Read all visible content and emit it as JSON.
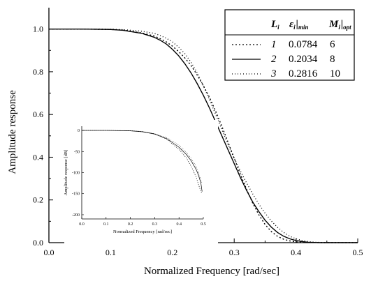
{
  "chart_data": [
    {
      "type": "line",
      "role": "main",
      "xlabel": "Normalized Frequency [rad/sec]",
      "ylabel": "Amplitude response",
      "xlim": [
        0.0,
        0.5
      ],
      "ylim": [
        0.0,
        1.1
      ],
      "xticks": [
        "0.0",
        "0.1",
        "0.2",
        "0.3",
        "0.4",
        "0.5"
      ],
      "yticks": [
        "0.0",
        "0.2",
        "0.4",
        "0.6",
        "0.8",
        "1.0"
      ],
      "xtick_values": [
        0.0,
        0.1,
        0.2,
        0.3,
        0.4,
        0.5
      ],
      "ytick_values": [
        0.0,
        0.2,
        0.4,
        0.6,
        0.8,
        1.0
      ],
      "grid": false,
      "legend_position": "top-right",
      "legend_headers": {
        "L": "L",
        "L_sub": "i",
        "eps": "ε",
        "eps_sub": "i",
        "eps_sub2": "min",
        "M": "M",
        "M_sub": "i",
        "M_sub2": "opt"
      },
      "series": [
        {
          "label": "1",
          "eps": "0.0784",
          "M": "6",
          "style": "dotted",
          "x": [
            0.0,
            0.05,
            0.1,
            0.12,
            0.15,
            0.17,
            0.18,
            0.19,
            0.2,
            0.21,
            0.22,
            0.23,
            0.24,
            0.25,
            0.26,
            0.27,
            0.28,
            0.29,
            0.3,
            0.31,
            0.32,
            0.33,
            0.34,
            0.35,
            0.36,
            0.37,
            0.38,
            0.39,
            0.4,
            0.42,
            0.44,
            0.46,
            0.48,
            0.5
          ],
          "y": [
            1.0,
            1.0,
            0.998,
            0.995,
            0.982,
            0.968,
            0.955,
            0.94,
            0.92,
            0.895,
            0.865,
            0.83,
            0.785,
            0.735,
            0.68,
            0.615,
            0.545,
            0.47,
            0.395,
            0.32,
            0.25,
            0.185,
            0.13,
            0.085,
            0.052,
            0.03,
            0.016,
            0.008,
            0.004,
            0.001,
            0.0,
            0.0,
            0.0,
            0.0
          ]
        },
        {
          "label": "2",
          "eps": "0.2034",
          "M": "8",
          "style": "solid",
          "x": [
            0.0,
            0.05,
            0.1,
            0.12,
            0.15,
            0.17,
            0.18,
            0.19,
            0.2,
            0.21,
            0.22,
            0.23,
            0.24,
            0.25,
            0.26,
            0.27,
            0.28,
            0.29,
            0.3,
            0.31,
            0.32,
            0.33,
            0.34,
            0.35,
            0.36,
            0.37,
            0.38,
            0.39,
            0.4,
            0.41,
            0.42,
            0.43,
            0.44,
            0.46,
            0.48,
            0.5
          ],
          "y": [
            1.0,
            1.0,
            0.998,
            0.994,
            0.98,
            0.962,
            0.948,
            0.93,
            0.905,
            0.875,
            0.838,
            0.795,
            0.745,
            0.69,
            0.63,
            0.565,
            0.5,
            0.435,
            0.37,
            0.305,
            0.245,
            0.19,
            0.145,
            0.105,
            0.073,
            0.048,
            0.03,
            0.018,
            0.01,
            0.005,
            0.002,
            0.001,
            0.0,
            0.0,
            0.0,
            0.0
          ]
        },
        {
          "label": "3",
          "eps": "0.2816",
          "M": "10",
          "style": "dotted-sparse",
          "x": [
            0.0,
            0.05,
            0.1,
            0.12,
            0.15,
            0.17,
            0.18,
            0.19,
            0.2,
            0.21,
            0.22,
            0.23,
            0.24,
            0.25,
            0.26,
            0.27,
            0.28,
            0.29,
            0.3,
            0.31,
            0.32,
            0.33,
            0.34,
            0.35,
            0.36,
            0.37,
            0.38,
            0.39,
            0.4,
            0.41,
            0.42,
            0.43,
            0.44,
            0.45,
            0.46,
            0.48,
            0.5
          ],
          "y": [
            1.0,
            1.0,
            0.999,
            0.997,
            0.99,
            0.98,
            0.97,
            0.957,
            0.94,
            0.915,
            0.885,
            0.845,
            0.795,
            0.735,
            0.67,
            0.6,
            0.53,
            0.46,
            0.395,
            0.335,
            0.28,
            0.228,
            0.18,
            0.138,
            0.102,
            0.072,
            0.048,
            0.03,
            0.018,
            0.01,
            0.005,
            0.002,
            0.001,
            0.0,
            0.0,
            0.0,
            0.0
          ]
        }
      ]
    },
    {
      "type": "line",
      "role": "inset",
      "xlabel": "Normalized Frequency [rad/sec]",
      "ylabel": "Amplitude response [dB]",
      "xlim": [
        0.0,
        0.5
      ],
      "ylim": [
        -210,
        10
      ],
      "xticks": [
        "0.0",
        "0.1",
        "0.2",
        "0.3",
        "0.4",
        "0.5"
      ],
      "yticks": [
        "0",
        "-50",
        "-100",
        "-150",
        "-200"
      ],
      "xtick_values": [
        0.0,
        0.1,
        0.2,
        0.3,
        0.4,
        0.5
      ],
      "ytick_values": [
        0,
        -50,
        -100,
        -150,
        -200
      ],
      "grid": false,
      "series": [
        {
          "label": "1",
          "style": "dotted",
          "x": [
            0.0,
            0.1,
            0.2,
            0.25,
            0.3,
            0.35,
            0.4,
            0.43,
            0.45,
            0.47,
            0.48,
            0.49,
            0.495
          ],
          "y": [
            0,
            0,
            -0.7,
            -2.7,
            -8,
            -21,
            -45,
            -65,
            -85,
            -110,
            -128,
            -145,
            -150
          ]
        },
        {
          "label": "2",
          "style": "solid",
          "x": [
            0.0,
            0.1,
            0.2,
            0.25,
            0.3,
            0.35,
            0.4,
            0.43,
            0.45,
            0.47,
            0.48,
            0.49,
            0.495
          ],
          "y": [
            0,
            0,
            -0.9,
            -3.2,
            -8.6,
            -19.6,
            -40,
            -57,
            -72,
            -92,
            -106,
            -125,
            -145
          ]
        },
        {
          "label": "3",
          "style": "dotted-sparse",
          "x": [
            0.0,
            0.1,
            0.2,
            0.25,
            0.3,
            0.35,
            0.4,
            0.43,
            0.45,
            0.47,
            0.48,
            0.49,
            0.495
          ],
          "y": [
            0,
            0,
            -0.5,
            -2.7,
            -8.1,
            -17.2,
            -35,
            -52,
            -66,
            -85,
            -100,
            -118,
            -125
          ]
        }
      ]
    }
  ]
}
